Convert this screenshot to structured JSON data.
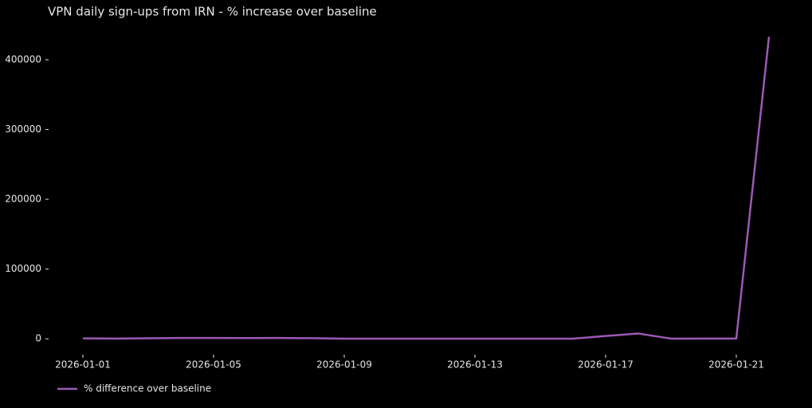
{
  "chart_data": {
    "type": "line",
    "title": "VPN daily sign-ups from IRN - % increase over baseline",
    "x": [
      "2026-01-01",
      "2026-01-02",
      "2026-01-03",
      "2026-01-04",
      "2026-01-05",
      "2026-01-06",
      "2026-01-07",
      "2026-01-08",
      "2026-01-09",
      "2026-01-10",
      "2026-01-11",
      "2026-01-12",
      "2026-01-13",
      "2026-01-14",
      "2026-01-15",
      "2026-01-16",
      "2026-01-17",
      "2026-01-18",
      "2026-01-19",
      "2026-01-20",
      "2026-01-21",
      "2026-01-22"
    ],
    "series": [
      {
        "name": "% difference over baseline",
        "color": "#9b59b6",
        "values": [
          500,
          300,
          700,
          1200,
          1100,
          1000,
          1200,
          800,
          200,
          100,
          100,
          100,
          100,
          100,
          100,
          200,
          4000,
          7500,
          200,
          300,
          300,
          433000
        ]
      }
    ],
    "xticks": [
      "2026-01-01",
      "2026-01-05",
      "2026-01-09",
      "2026-01-13",
      "2026-01-17",
      "2026-01-21"
    ],
    "ylim": [
      -17000,
      440000
    ],
    "yticks": [
      0,
      100000,
      200000,
      300000,
      400000
    ],
    "legend": "lower left"
  }
}
